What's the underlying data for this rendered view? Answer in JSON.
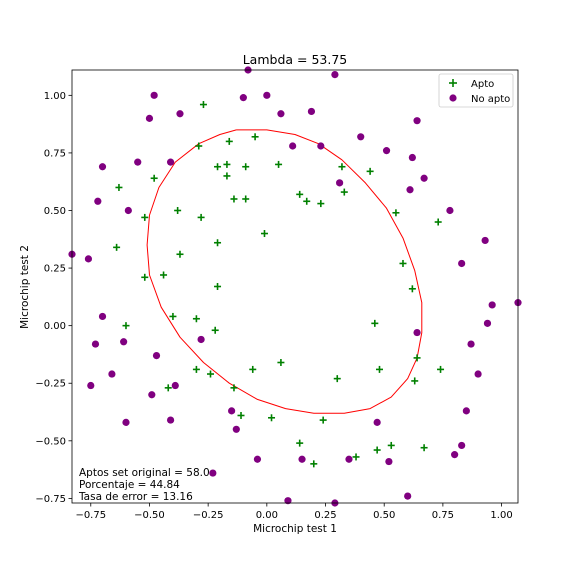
{
  "chart_data": {
    "type": "scatter",
    "title": "Lambda = 53.75",
    "xlabel": "Microchip test 1",
    "ylabel": "Microchip test 2",
    "xlim": [
      -0.83,
      1.07
    ],
    "ylim": [
      -0.77,
      1.11
    ],
    "x_ticks": [
      -0.75,
      -0.5,
      -0.25,
      0.0,
      0.25,
      0.5,
      0.75,
      1.0
    ],
    "x_tick_labels": [
      "−0.75",
      "−0.50",
      "−0.25",
      "0.00",
      "0.25",
      "0.50",
      "0.75",
      "1.00"
    ],
    "y_ticks": [
      -0.75,
      -0.5,
      -0.25,
      0.0,
      0.25,
      0.5,
      0.75,
      1.0
    ],
    "y_tick_labels": [
      "−0.75",
      "−0.50",
      "−0.25",
      "0.00",
      "0.25",
      "0.50",
      "0.75",
      "1.00"
    ],
    "grid": false,
    "legend_position": "top-right",
    "series": [
      {
        "name": "Apto",
        "marker": "plus",
        "color": "#008000",
        "points": [
          [
            -0.27,
            0.96
          ],
          [
            -0.29,
            0.78
          ],
          [
            -0.16,
            0.8
          ],
          [
            -0.05,
            0.82
          ],
          [
            -0.21,
            0.69
          ],
          [
            -0.17,
            0.7
          ],
          [
            -0.09,
            0.69
          ],
          [
            -0.17,
            0.65
          ],
          [
            0.05,
            0.7
          ],
          [
            -0.48,
            0.64
          ],
          [
            -0.63,
            0.6
          ],
          [
            -0.38,
            0.5
          ],
          [
            -0.28,
            0.47
          ],
          [
            -0.14,
            0.55
          ],
          [
            -0.09,
            0.55
          ],
          [
            -0.52,
            0.47
          ],
          [
            -0.01,
            0.4
          ],
          [
            -0.21,
            0.36
          ],
          [
            -0.64,
            0.34
          ],
          [
            -0.37,
            0.31
          ],
          [
            -0.52,
            0.21
          ],
          [
            -0.44,
            0.22
          ],
          [
            -0.21,
            0.17
          ],
          [
            0.14,
            0.57
          ],
          [
            0.17,
            0.54
          ],
          [
            0.23,
            0.53
          ],
          [
            0.32,
            0.69
          ],
          [
            0.33,
            0.58
          ],
          [
            0.44,
            0.67
          ],
          [
            0.55,
            0.49
          ],
          [
            0.58,
            0.27
          ],
          [
            0.62,
            0.16
          ],
          [
            0.73,
            0.45
          ],
          [
            -0.6,
            0.0
          ],
          [
            -0.4,
            0.04
          ],
          [
            -0.3,
            0.03
          ],
          [
            -0.22,
            -0.02
          ],
          [
            0.46,
            0.01
          ],
          [
            0.64,
            -0.14
          ],
          [
            -0.3,
            -0.19
          ],
          [
            -0.24,
            -0.21
          ],
          [
            -0.06,
            -0.19
          ],
          [
            0.06,
            -0.16
          ],
          [
            0.3,
            -0.23
          ],
          [
            0.48,
            -0.19
          ],
          [
            0.63,
            -0.24
          ],
          [
            0.74,
            -0.19
          ],
          [
            -0.42,
            -0.27
          ],
          [
            -0.14,
            -0.27
          ],
          [
            -0.11,
            -0.39
          ],
          [
            0.02,
            -0.4
          ],
          [
            0.24,
            -0.41
          ],
          [
            0.14,
            -0.51
          ],
          [
            0.2,
            -0.6
          ],
          [
            0.38,
            -0.57
          ],
          [
            0.47,
            -0.54
          ],
          [
            0.53,
            -0.52
          ],
          [
            0.67,
            -0.53
          ]
        ]
      },
      {
        "name": "No apto",
        "marker": "circle",
        "color": "#800080",
        "points": [
          [
            -0.08,
            1.11
          ],
          [
            0.29,
            1.09
          ],
          [
            -0.48,
            1.0
          ],
          [
            -0.1,
            0.99
          ],
          [
            0.0,
            1.0
          ],
          [
            -0.5,
            0.9
          ],
          [
            -0.37,
            0.92
          ],
          [
            0.06,
            0.92
          ],
          [
            0.19,
            0.93
          ],
          [
            0.64,
            0.89
          ],
          [
            0.4,
            0.82
          ],
          [
            0.11,
            0.78
          ],
          [
            0.23,
            0.78
          ],
          [
            0.51,
            0.76
          ],
          [
            0.62,
            0.73
          ],
          [
            0.67,
            0.64
          ],
          [
            0.61,
            0.59
          ],
          [
            0.31,
            0.62
          ],
          [
            0.78,
            0.5
          ],
          [
            -0.41,
            0.71
          ],
          [
            -0.55,
            0.71
          ],
          [
            -0.7,
            0.69
          ],
          [
            -0.72,
            0.54
          ],
          [
            -0.59,
            0.5
          ],
          [
            -0.83,
            0.31
          ],
          [
            -0.76,
            0.29
          ],
          [
            0.83,
            0.27
          ],
          [
            0.93,
            0.37
          ],
          [
            0.96,
            0.09
          ],
          [
            1.07,
            0.1
          ],
          [
            0.94,
            0.01
          ],
          [
            -0.7,
            0.04
          ],
          [
            -0.73,
            -0.08
          ],
          [
            -0.61,
            -0.07
          ],
          [
            -0.28,
            -0.06
          ],
          [
            0.64,
            -0.03
          ],
          [
            0.87,
            -0.08
          ],
          [
            -0.47,
            -0.13
          ],
          [
            -0.66,
            -0.21
          ],
          [
            -0.75,
            -0.26
          ],
          [
            -0.39,
            -0.26
          ],
          [
            0.9,
            -0.21
          ],
          [
            -0.49,
            -0.3
          ],
          [
            -0.15,
            -0.37
          ],
          [
            -0.41,
            -0.41
          ],
          [
            -0.6,
            -0.42
          ],
          [
            -0.13,
            -0.45
          ],
          [
            0.47,
            -0.42
          ],
          [
            0.85,
            -0.37
          ],
          [
            0.83,
            -0.52
          ],
          [
            0.8,
            -0.56
          ],
          [
            -0.23,
            -0.64
          ],
          [
            -0.04,
            -0.58
          ],
          [
            0.15,
            -0.58
          ],
          [
            0.35,
            -0.58
          ],
          [
            0.52,
            -0.59
          ],
          [
            0.6,
            -0.74
          ],
          [
            0.09,
            -0.76
          ],
          [
            0.29,
            -0.77
          ]
        ]
      }
    ],
    "decision_boundary": {
      "color": "#ff0000",
      "points": [
        [
          -0.13,
          0.85
        ],
        [
          0.0,
          0.85
        ],
        [
          0.12,
          0.83
        ],
        [
          0.22,
          0.79
        ],
        [
          0.32,
          0.72
        ],
        [
          0.42,
          0.62
        ],
        [
          0.51,
          0.51
        ],
        [
          0.58,
          0.38
        ],
        [
          0.63,
          0.24
        ],
        [
          0.66,
          0.1
        ],
        [
          0.66,
          -0.03
        ],
        [
          0.64,
          -0.14
        ],
        [
          0.6,
          -0.23
        ],
        [
          0.53,
          -0.31
        ],
        [
          0.44,
          -0.36
        ],
        [
          0.33,
          -0.38
        ],
        [
          0.2,
          -0.38
        ],
        [
          0.08,
          -0.36
        ],
        [
          -0.04,
          -0.32
        ],
        [
          -0.16,
          -0.25
        ],
        [
          -0.27,
          -0.16
        ],
        [
          -0.37,
          -0.05
        ],
        [
          -0.45,
          0.08
        ],
        [
          -0.5,
          0.22
        ],
        [
          -0.51,
          0.35
        ],
        [
          -0.5,
          0.48
        ],
        [
          -0.46,
          0.6
        ],
        [
          -0.39,
          0.71
        ],
        [
          -0.29,
          0.79
        ],
        [
          -0.2,
          0.83
        ],
        [
          -0.13,
          0.85
        ]
      ]
    },
    "annotations": [
      "Aptos set original = 58.0",
      "Porcentaje = 44.84",
      "Tasa de error = 13.16"
    ]
  }
}
